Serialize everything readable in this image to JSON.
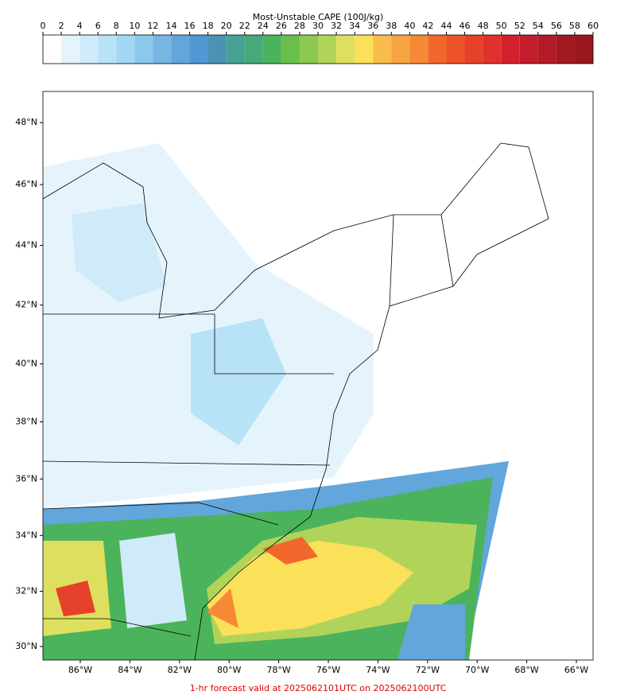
{
  "colorbar": {
    "title": "Most-Unstable CAPE (100J/kg)",
    "ticks": [
      0,
      2,
      4,
      6,
      8,
      10,
      12,
      14,
      16,
      18,
      20,
      22,
      24,
      26,
      28,
      30,
      32,
      34,
      36,
      38,
      40,
      42,
      44,
      46,
      48,
      50,
      52,
      54,
      56,
      58,
      60
    ],
    "colors": [
      "#ffffff",
      "#e5f4fc",
      "#cfeaf8",
      "#b8e2f6",
      "#a3d8f4",
      "#8cc8ec",
      "#77b6e2",
      "#62a6db",
      "#5197d3",
      "#4a93b5",
      "#47a294",
      "#47a87a",
      "#4bb35b",
      "#6abf4b",
      "#8dc951",
      "#b0d459",
      "#dde05e",
      "#fbe05a",
      "#f9bd4e",
      "#f7a443",
      "#f68935",
      "#f2672c",
      "#ec5228",
      "#e6412a",
      "#e0312c",
      "#d4202d",
      "#c31c2a",
      "#b31b28",
      "#a2191f",
      "#9a171e"
    ]
  },
  "map": {
    "lat_labels": [
      {
        "value": 48,
        "label": "48°N"
      },
      {
        "value": 46,
        "label": "46°N"
      },
      {
        "value": 44,
        "label": "44°N"
      },
      {
        "value": 42,
        "label": "42°N"
      },
      {
        "value": 40,
        "label": "40°N"
      },
      {
        "value": 38,
        "label": "38°N"
      },
      {
        "value": 36,
        "label": "36°N"
      },
      {
        "value": 34,
        "label": "34°N"
      },
      {
        "value": 32,
        "label": "32°N"
      },
      {
        "value": 30,
        "label": "30°N"
      }
    ],
    "lon_labels": [
      {
        "value": -86,
        "label": "86°W"
      },
      {
        "value": -84,
        "label": "84°W"
      },
      {
        "value": -82,
        "label": "82°W"
      },
      {
        "value": -80,
        "label": "80°W"
      },
      {
        "value": -78,
        "label": "78°W"
      },
      {
        "value": -76,
        "label": "76°W"
      },
      {
        "value": -74,
        "label": "74°W"
      },
      {
        "value": -72,
        "label": "72°W"
      },
      {
        "value": -70,
        "label": "70°W"
      },
      {
        "value": -68,
        "label": "68°W"
      },
      {
        "value": -66,
        "label": "66°W"
      }
    ]
  },
  "footer": "1-hr forecast valid at 2025062101UTC on 2025062100UTC"
}
